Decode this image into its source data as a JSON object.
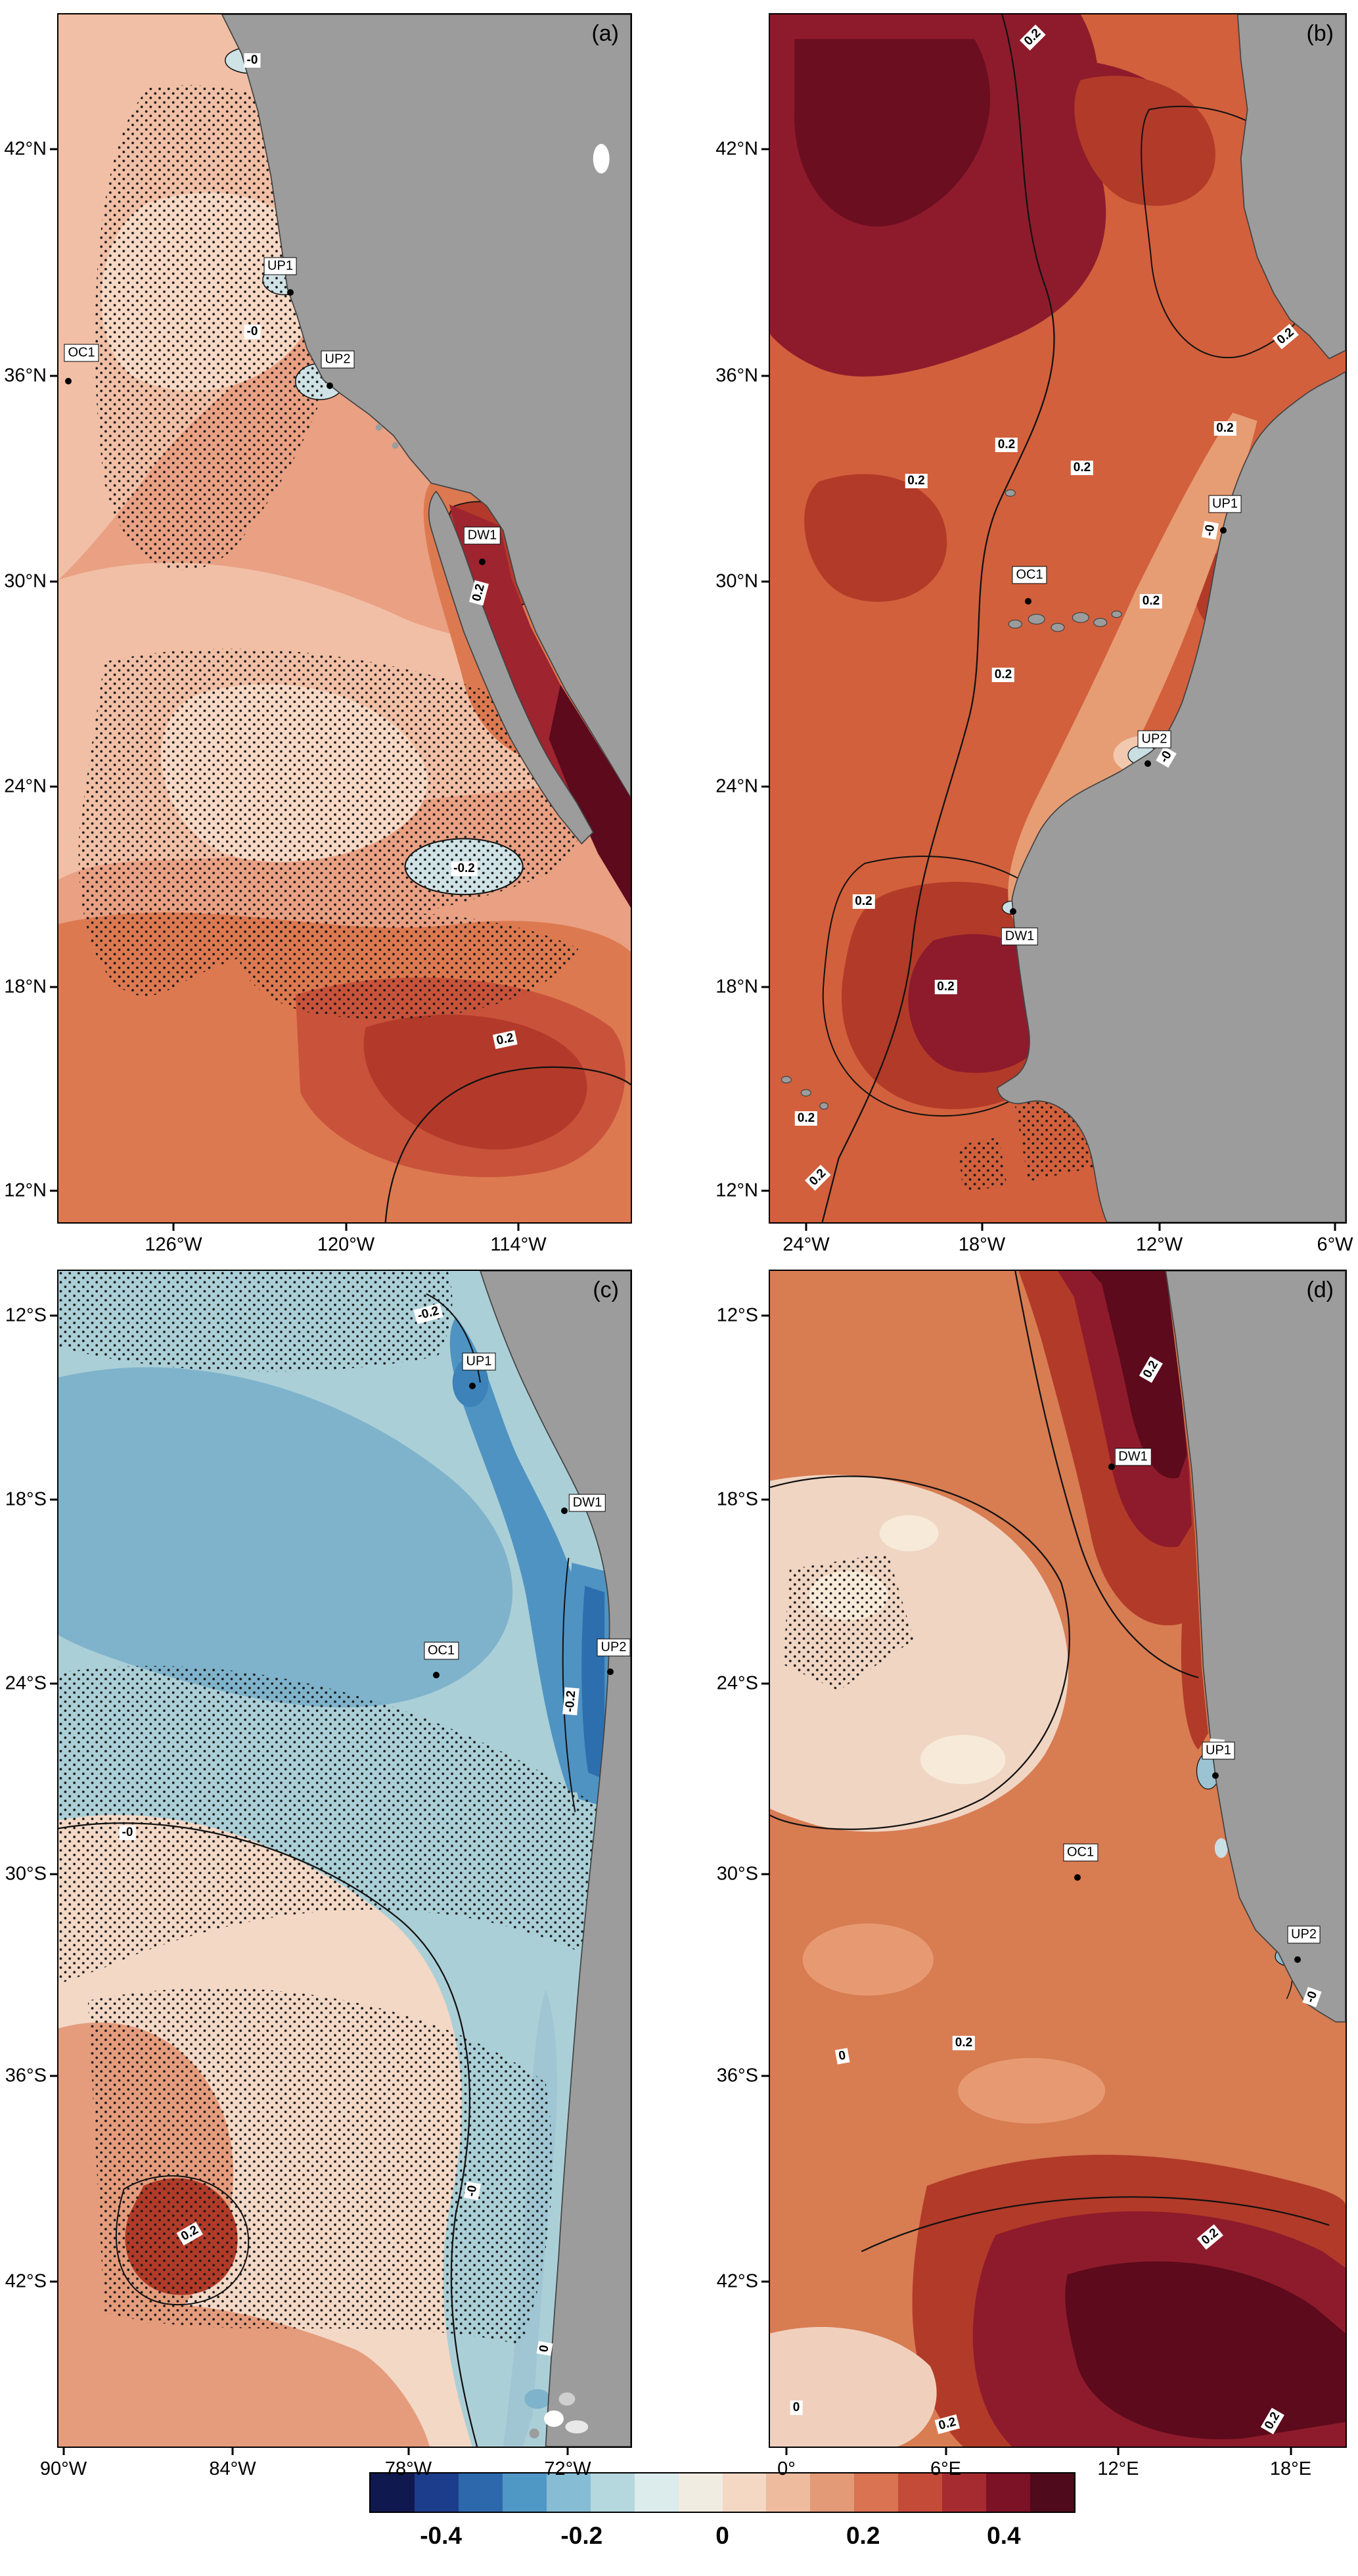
{
  "chart_data": {
    "type": "heatmap",
    "description": "Four-panel filled-contour map figure of sea-surface trend anomalies in four eastern-boundary upwelling regions, with stippling, labeled contours, station markers (OC1, UP1, UP2, DW1) and a shared diverging blue-red colorbar.",
    "colorbar": {
      "tick_labels": [
        "-0.4",
        "-0.2",
        "0",
        "0.2",
        "0.4"
      ],
      "colors": [
        "#10194f",
        "#1c3c8c",
        "#2d68ad",
        "#4f97c4",
        "#86bcd4",
        "#b5d7de",
        "#dcebec",
        "#f0ece1",
        "#f4d8c4",
        "#eebb9e",
        "#e39a76",
        "#d97352",
        "#c44b38",
        "#a62b30",
        "#7c1226",
        "#4f0a1c"
      ]
    },
    "map_colors": {
      "land": "#9c9c9c",
      "ocean_warm": "#d2603c",
      "ocean_cool": "#abcfd7"
    },
    "panels": [
      {
        "id": "a",
        "label": "(a)",
        "x_tick_labels": [
          "126°W",
          "120°W",
          "114°W"
        ],
        "y_tick_labels": [
          "42°N",
          "36°N",
          "30°N",
          "24°N",
          "18°N",
          "12°N"
        ],
        "stations": [
          "OC1",
          "UP1",
          "UP2",
          "DW1"
        ],
        "contour_labels": [
          "-0",
          "0.2",
          "0.2",
          "-0.2",
          "-0"
        ]
      },
      {
        "id": "b",
        "label": "(b)",
        "x_tick_labels": [
          "24°W",
          "18°W",
          "12°W",
          "6°W"
        ],
        "y_tick_labels": [
          "42°N",
          "36°N",
          "30°N",
          "24°N",
          "18°N",
          "12°N"
        ],
        "stations": [
          "UP1",
          "OC1",
          "UP2",
          "DW1"
        ],
        "contour_labels": [
          "0.2",
          "0.2",
          "0.2",
          "0.2",
          "0.2",
          "0.2",
          "0.2",
          "0.2",
          "0.2",
          "0.2",
          "0.2",
          "0.2",
          "-0",
          "-0"
        ]
      },
      {
        "id": "c",
        "label": "(c)",
        "x_tick_labels": [
          "90°W",
          "84°W",
          "78°W",
          "72°W"
        ],
        "y_tick_labels": [
          "12°S",
          "18°S",
          "24°S",
          "30°S",
          "36°S",
          "42°S"
        ],
        "stations": [
          "UP1",
          "DW1",
          "OC1",
          "UP2"
        ],
        "contour_labels": [
          "-0.2",
          "-0",
          "0.2",
          "-0.2",
          "0",
          "-0"
        ]
      },
      {
        "id": "d",
        "label": "(d)",
        "x_tick_labels": [
          "0°",
          "6°E",
          "12°E",
          "18°E"
        ],
        "y_tick_labels": [
          "12°S",
          "18°S",
          "24°S",
          "30°S",
          "36°S",
          "42°S"
        ],
        "stations": [
          "DW1",
          "UP1",
          "OC1",
          "UP2"
        ],
        "contour_labels": [
          "0.2",
          "0",
          "0.2",
          "-0",
          "-0",
          "0.2",
          "0",
          "0.2",
          "0.2"
        ]
      }
    ]
  }
}
